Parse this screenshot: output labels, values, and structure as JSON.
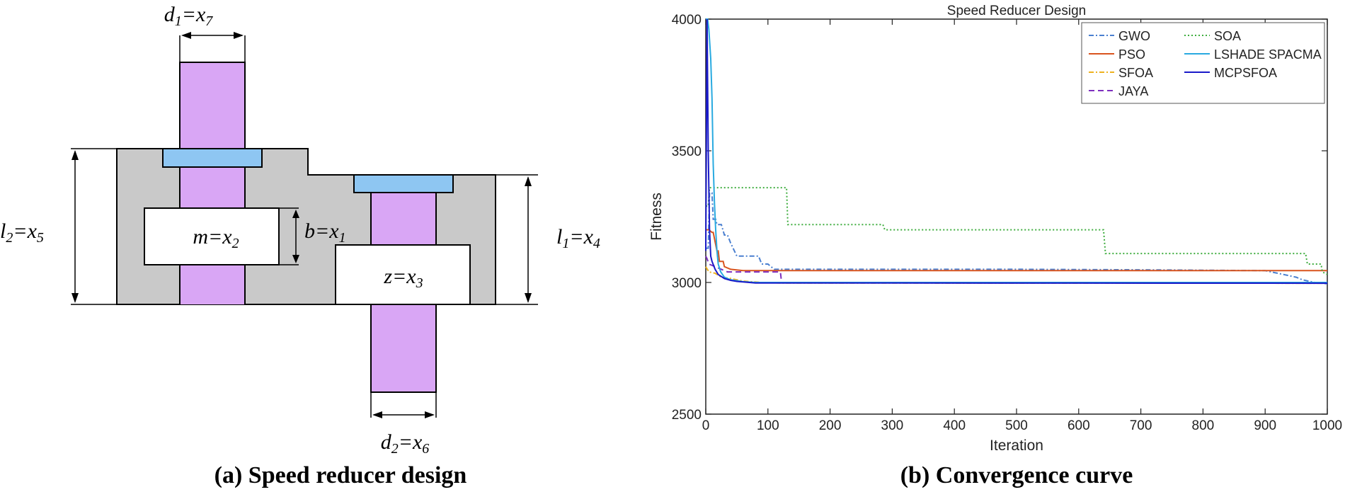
{
  "panels": {
    "a": {
      "caption": "(a) Speed reducer design",
      "labels": {
        "d1": "d1=x7",
        "d2": "d2=x6",
        "l1": "l1=x4",
        "l2": "l2=x5",
        "m": "m=x2",
        "b": "b=x1",
        "z": "z=x3"
      },
      "colors": {
        "housing": "#c9c9c9",
        "shaft": "#d9a6f5",
        "bearing": "#8ec6f2",
        "outline": "#000000"
      }
    },
    "b": {
      "caption": "(b) Convergence curve"
    }
  },
  "chart_data": {
    "type": "line",
    "title": "Speed Reducer Design",
    "xlabel": "Iteration",
    "ylabel": "Fitness",
    "xlim": [
      0,
      1000
    ],
    "ylim": [
      2500,
      4000
    ],
    "xticks": [
      0,
      100,
      200,
      300,
      400,
      500,
      600,
      700,
      800,
      900,
      1000
    ],
    "yticks": [
      2500,
      3000,
      3500,
      4000
    ],
    "legend_position": "top-right",
    "series": [
      {
        "name": "GWO",
        "color": "#4a7fd0",
        "dash": "dashdot",
        "x": [
          0,
          4,
          6,
          10,
          12,
          16,
          18,
          25,
          30,
          35,
          40,
          50,
          70,
          80,
          85,
          90,
          100,
          110,
          120,
          150,
          300,
          500,
          700,
          900,
          930,
          950,
          960,
          980,
          1000
        ],
        "y": [
          3130,
          3130,
          3340,
          3340,
          3240,
          3240,
          3220,
          3220,
          3180,
          3180,
          3150,
          3100,
          3100,
          3100,
          3100,
          3070,
          3070,
          3050,
          3050,
          3050,
          3050,
          3050,
          3048,
          3045,
          3030,
          3020,
          3010,
          3000,
          2995
        ]
      },
      {
        "name": "PSO",
        "color": "#d9541e",
        "dash": "solid",
        "x": [
          0,
          5,
          10,
          12,
          18,
          20,
          22,
          28,
          30,
          40,
          60,
          100,
          1000
        ],
        "y": [
          3200,
          3200,
          3190,
          3190,
          3120,
          3120,
          3080,
          3080,
          3060,
          3050,
          3045,
          3045,
          3045
        ]
      },
      {
        "name": "SFOA",
        "color": "#edb120",
        "dash": "dashdot",
        "x": [
          0,
          5,
          15,
          25,
          40,
          60,
          90,
          120,
          1000
        ],
        "y": [
          3060,
          3040,
          3035,
          3020,
          3015,
          3005,
          3000,
          2998,
          2997
        ]
      },
      {
        "name": "JAYA",
        "color": "#7e2fbe",
        "dash": "dashed",
        "x": [
          0,
          2,
          5,
          15,
          25,
          35,
          60,
          120,
          122,
          130,
          1000
        ],
        "y": [
          3100,
          3090,
          3070,
          3060,
          3050,
          3040,
          3040,
          3040,
          3000,
          3000,
          3000
        ]
      },
      {
        "name": "SOA",
        "color": "#3fad3f",
        "dash": "dotted",
        "x": [
          0,
          4,
          6,
          130,
          132,
          285,
          288,
          640,
          643,
          965,
          968,
          990,
          992,
          1000
        ],
        "y": [
          3290,
          3290,
          3360,
          3360,
          3220,
          3220,
          3200,
          3200,
          3110,
          3110,
          3070,
          3070,
          3040,
          3030
        ]
      },
      {
        "name": "LSHADE SPACMA",
        "color": "#29aae0",
        "dash": "solid",
        "x": [
          0,
          3,
          5,
          8,
          10,
          12,
          14,
          16,
          18,
          20,
          24,
          30,
          40,
          60,
          80,
          1000
        ],
        "y": [
          4000,
          4000,
          3960,
          3850,
          3700,
          3450,
          3300,
          3200,
          3120,
          3070,
          3040,
          3020,
          3010,
          3003,
          3000,
          3000
        ]
      },
      {
        "name": "MCPSFOA",
        "color": "#1a1ac8",
        "dash": "solid",
        "x": [
          0,
          2,
          4,
          6,
          8,
          10,
          15,
          20,
          30,
          40,
          50,
          60,
          80,
          1000
        ],
        "y": [
          3120,
          4000,
          3500,
          3200,
          3100,
          3080,
          3050,
          3030,
          3015,
          3008,
          3004,
          3002,
          2998,
          2997
        ]
      }
    ]
  }
}
